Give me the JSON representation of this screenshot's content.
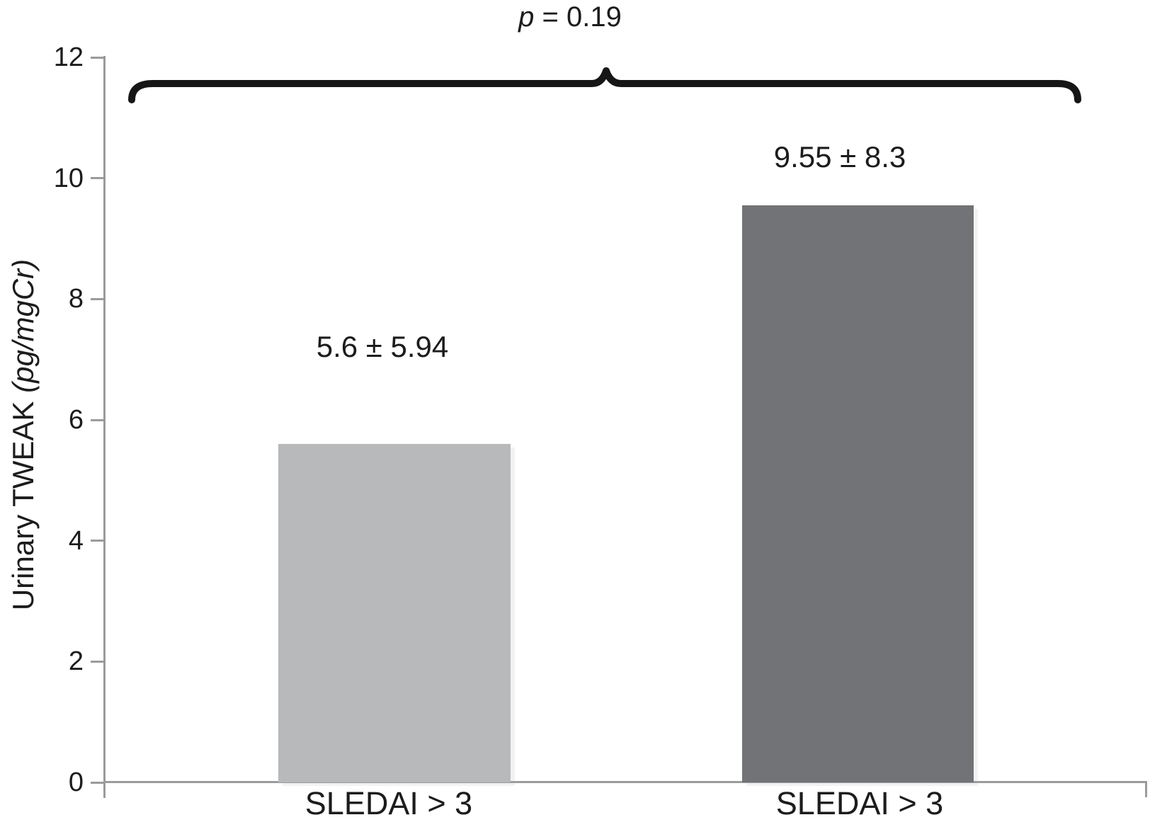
{
  "annotation": {
    "p_symbol": "p",
    "p_rest": " = 0.19"
  },
  "axes": {
    "y_title_prefix": "Urinary TWEAK ",
    "y_title_unit": "(pg/mgCr)",
    "y_tick_labels": [
      "0",
      "2",
      "4",
      "6",
      "8",
      "10",
      "12"
    ]
  },
  "chart_data": {
    "type": "bar",
    "categories": [
      "SLEDAI > 3",
      "SLEDAI > 3"
    ],
    "values": [
      5.6,
      9.55
    ],
    "errors_sd": [
      5.94,
      8.3
    ],
    "value_labels": [
      "5.6 ± 5.94",
      "9.55 ± 8.3"
    ],
    "annotation": "p = 0.19",
    "title": "",
    "xlabel": "",
    "ylabel": "Urinary TWEAK (pg/mgCr)",
    "ylim": [
      0,
      12
    ],
    "yticks": [
      0,
      2,
      4,
      6,
      8,
      10,
      12
    ],
    "grid": false,
    "legend": "none",
    "bar_colors": [
      "#b8b9ba",
      "#717376"
    ],
    "axis_color": "#9b9b9b",
    "brace_color": "#161616",
    "text_color": "#1c1c1c"
  }
}
